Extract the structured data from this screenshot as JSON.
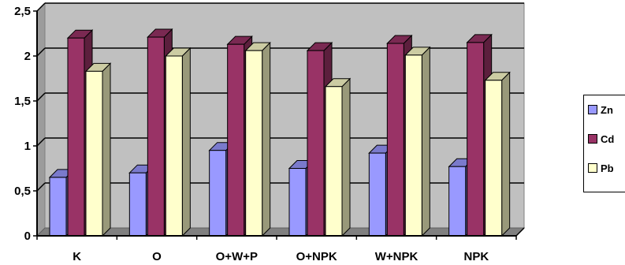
{
  "chart_data": {
    "type": "bar",
    "categories": [
      "K",
      "O",
      "O+W+P",
      "O+NPK",
      "W+NPK",
      "NPK"
    ],
    "series": [
      {
        "name": "Zn",
        "values": [
          0.65,
          0.7,
          0.95,
          0.75,
          0.92,
          0.77
        ],
        "color": "#9999ff"
      },
      {
        "name": "Cd",
        "values": [
          2.2,
          2.21,
          2.13,
          2.06,
          2.14,
          2.15
        ],
        "color": "#993366"
      },
      {
        "name": "Pb",
        "values": [
          1.83,
          2.0,
          2.06,
          1.66,
          2.01,
          1.73
        ],
        "color": "#ffffcc"
      }
    ],
    "yticks": [
      "0",
      "0,5",
      "1",
      "1,5",
      "2",
      "2,5"
    ],
    "ylim": [
      0,
      2.5
    ],
    "grid": true,
    "legend_position": "right",
    "style": "3d-clustered-column"
  }
}
